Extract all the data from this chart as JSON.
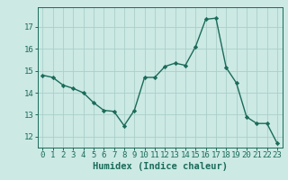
{
  "x": [
    0,
    1,
    2,
    3,
    4,
    5,
    6,
    7,
    8,
    9,
    10,
    11,
    12,
    13,
    14,
    15,
    16,
    17,
    18,
    19,
    20,
    21,
    22,
    23
  ],
  "y": [
    14.8,
    14.7,
    14.35,
    14.2,
    14.0,
    13.55,
    13.2,
    13.15,
    12.5,
    13.2,
    14.7,
    14.7,
    15.2,
    15.35,
    15.25,
    16.1,
    17.35,
    17.4,
    15.15,
    14.45,
    12.9,
    12.6,
    12.6,
    11.7
  ],
  "line_color": "#1a6b5a",
  "marker": "D",
  "marker_size": 2.2,
  "background_color": "#cce9e4",
  "grid_color": "#aacfc9",
  "xlabel": "Humidex (Indice chaleur)",
  "ylim": [
    11.5,
    17.9
  ],
  "xlim": [
    -0.5,
    23.5
  ],
  "yticks": [
    12,
    13,
    14,
    15,
    16,
    17
  ],
  "xticks": [
    0,
    1,
    2,
    3,
    4,
    5,
    6,
    7,
    8,
    9,
    10,
    11,
    12,
    13,
    14,
    15,
    16,
    17,
    18,
    19,
    20,
    21,
    22,
    23
  ],
  "xtick_labels": [
    "0",
    "1",
    "2",
    "3",
    "4",
    "5",
    "6",
    "7",
    "8",
    "9",
    "10",
    "11",
    "12",
    "13",
    "14",
    "15",
    "16",
    "17",
    "18",
    "19",
    "20",
    "21",
    "22",
    "23"
  ],
  "tick_color": "#1a6b5a",
  "axis_color": "#1a6b5a",
  "xlabel_fontsize": 7.5,
  "tick_fontsize": 6.5,
  "line_width": 1.0
}
